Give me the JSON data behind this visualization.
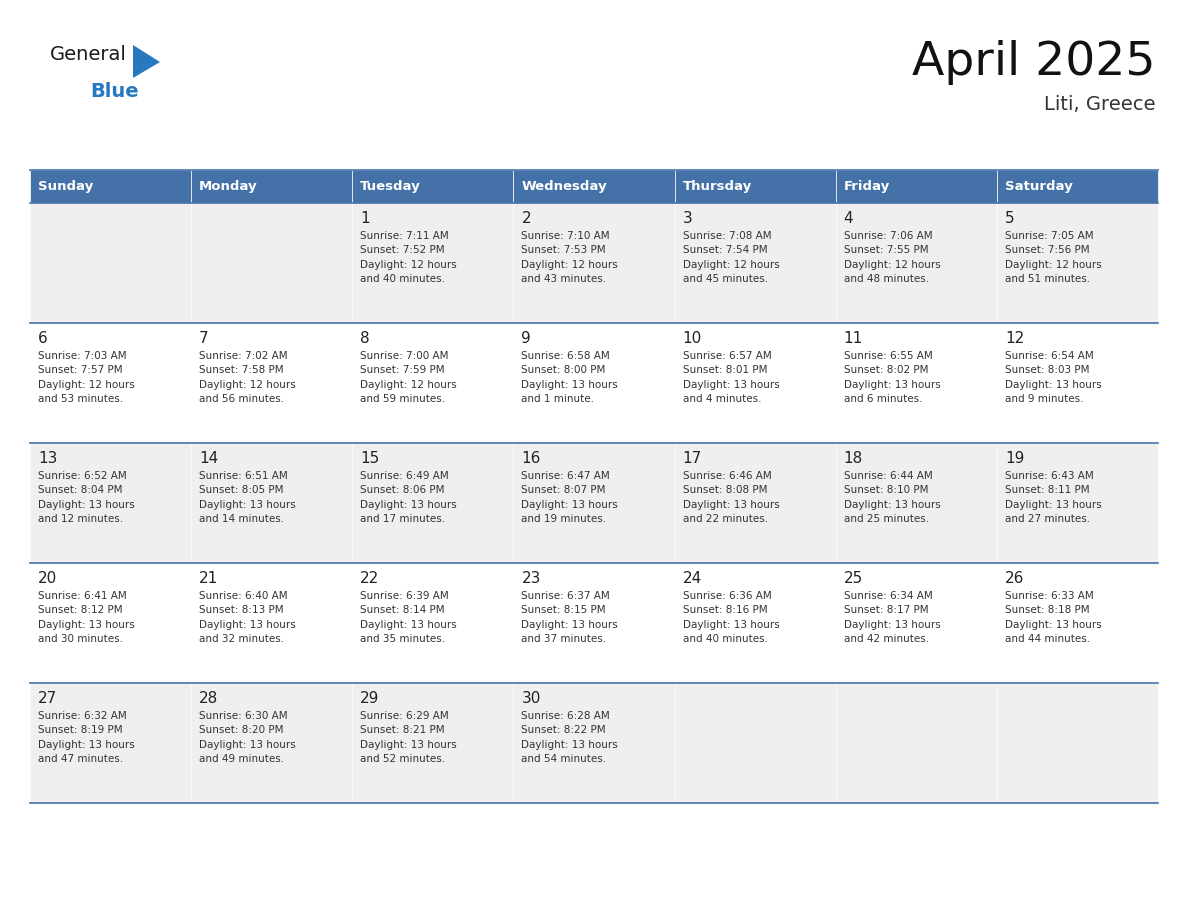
{
  "title": "April 2025",
  "subtitle": "Liti, Greece",
  "header_color": "#4472a8",
  "header_text_color": "#ffffff",
  "cell_bg_white": "#ffffff",
  "cell_bg_gray": "#efefef",
  "border_color": "#4472a8",
  "text_color": "#222222",
  "info_color": "#333333",
  "logo_black": "#1a1a1a",
  "logo_blue": "#2878c0",
  "triangle_color": "#2878c0",
  "days_of_week": [
    "Sunday",
    "Monday",
    "Tuesday",
    "Wednesday",
    "Thursday",
    "Friday",
    "Saturday"
  ],
  "weeks": [
    [
      {
        "day": "",
        "info": ""
      },
      {
        "day": "",
        "info": ""
      },
      {
        "day": "1",
        "info": "Sunrise: 7:11 AM\nSunset: 7:52 PM\nDaylight: 12 hours\nand 40 minutes."
      },
      {
        "day": "2",
        "info": "Sunrise: 7:10 AM\nSunset: 7:53 PM\nDaylight: 12 hours\nand 43 minutes."
      },
      {
        "day": "3",
        "info": "Sunrise: 7:08 AM\nSunset: 7:54 PM\nDaylight: 12 hours\nand 45 minutes."
      },
      {
        "day": "4",
        "info": "Sunrise: 7:06 AM\nSunset: 7:55 PM\nDaylight: 12 hours\nand 48 minutes."
      },
      {
        "day": "5",
        "info": "Sunrise: 7:05 AM\nSunset: 7:56 PM\nDaylight: 12 hours\nand 51 minutes."
      }
    ],
    [
      {
        "day": "6",
        "info": "Sunrise: 7:03 AM\nSunset: 7:57 PM\nDaylight: 12 hours\nand 53 minutes."
      },
      {
        "day": "7",
        "info": "Sunrise: 7:02 AM\nSunset: 7:58 PM\nDaylight: 12 hours\nand 56 minutes."
      },
      {
        "day": "8",
        "info": "Sunrise: 7:00 AM\nSunset: 7:59 PM\nDaylight: 12 hours\nand 59 minutes."
      },
      {
        "day": "9",
        "info": "Sunrise: 6:58 AM\nSunset: 8:00 PM\nDaylight: 13 hours\nand 1 minute."
      },
      {
        "day": "10",
        "info": "Sunrise: 6:57 AM\nSunset: 8:01 PM\nDaylight: 13 hours\nand 4 minutes."
      },
      {
        "day": "11",
        "info": "Sunrise: 6:55 AM\nSunset: 8:02 PM\nDaylight: 13 hours\nand 6 minutes."
      },
      {
        "day": "12",
        "info": "Sunrise: 6:54 AM\nSunset: 8:03 PM\nDaylight: 13 hours\nand 9 minutes."
      }
    ],
    [
      {
        "day": "13",
        "info": "Sunrise: 6:52 AM\nSunset: 8:04 PM\nDaylight: 13 hours\nand 12 minutes."
      },
      {
        "day": "14",
        "info": "Sunrise: 6:51 AM\nSunset: 8:05 PM\nDaylight: 13 hours\nand 14 minutes."
      },
      {
        "day": "15",
        "info": "Sunrise: 6:49 AM\nSunset: 8:06 PM\nDaylight: 13 hours\nand 17 minutes."
      },
      {
        "day": "16",
        "info": "Sunrise: 6:47 AM\nSunset: 8:07 PM\nDaylight: 13 hours\nand 19 minutes."
      },
      {
        "day": "17",
        "info": "Sunrise: 6:46 AM\nSunset: 8:08 PM\nDaylight: 13 hours\nand 22 minutes."
      },
      {
        "day": "18",
        "info": "Sunrise: 6:44 AM\nSunset: 8:10 PM\nDaylight: 13 hours\nand 25 minutes."
      },
      {
        "day": "19",
        "info": "Sunrise: 6:43 AM\nSunset: 8:11 PM\nDaylight: 13 hours\nand 27 minutes."
      }
    ],
    [
      {
        "day": "20",
        "info": "Sunrise: 6:41 AM\nSunset: 8:12 PM\nDaylight: 13 hours\nand 30 minutes."
      },
      {
        "day": "21",
        "info": "Sunrise: 6:40 AM\nSunset: 8:13 PM\nDaylight: 13 hours\nand 32 minutes."
      },
      {
        "day": "22",
        "info": "Sunrise: 6:39 AM\nSunset: 8:14 PM\nDaylight: 13 hours\nand 35 minutes."
      },
      {
        "day": "23",
        "info": "Sunrise: 6:37 AM\nSunset: 8:15 PM\nDaylight: 13 hours\nand 37 minutes."
      },
      {
        "day": "24",
        "info": "Sunrise: 6:36 AM\nSunset: 8:16 PM\nDaylight: 13 hours\nand 40 minutes."
      },
      {
        "day": "25",
        "info": "Sunrise: 6:34 AM\nSunset: 8:17 PM\nDaylight: 13 hours\nand 42 minutes."
      },
      {
        "day": "26",
        "info": "Sunrise: 6:33 AM\nSunset: 8:18 PM\nDaylight: 13 hours\nand 44 minutes."
      }
    ],
    [
      {
        "day": "27",
        "info": "Sunrise: 6:32 AM\nSunset: 8:19 PM\nDaylight: 13 hours\nand 47 minutes."
      },
      {
        "day": "28",
        "info": "Sunrise: 6:30 AM\nSunset: 8:20 PM\nDaylight: 13 hours\nand 49 minutes."
      },
      {
        "day": "29",
        "info": "Sunrise: 6:29 AM\nSunset: 8:21 PM\nDaylight: 13 hours\nand 52 minutes."
      },
      {
        "day": "30",
        "info": "Sunrise: 6:28 AM\nSunset: 8:22 PM\nDaylight: 13 hours\nand 54 minutes."
      },
      {
        "day": "",
        "info": ""
      },
      {
        "day": "",
        "info": ""
      },
      {
        "day": "",
        "info": ""
      }
    ]
  ]
}
